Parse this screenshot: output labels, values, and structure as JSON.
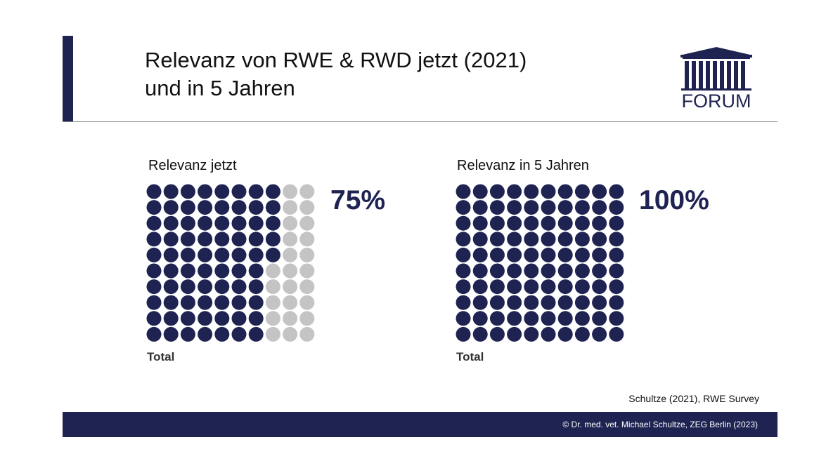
{
  "header": {
    "title_line1": "Relevanz von RWE & RWD jetzt (2021)",
    "title_line2": "und in 5 Jahren",
    "logo_text": "FORUM"
  },
  "colors": {
    "accent": "#1f2352",
    "filled_dot": "#1f2352",
    "empty_dot": "#c4c4c4",
    "rule": "#8a8a8a"
  },
  "chart_data": [
    {
      "type": "waffle",
      "title": "Relevanz jetzt",
      "value_label": "75%",
      "value_percent": 75,
      "total": 100,
      "filled": 75,
      "grid": [
        10,
        10
      ],
      "xlabel": "Total"
    },
    {
      "type": "waffle",
      "title": "Relevanz in 5 Jahren",
      "value_label": "100%",
      "value_percent": 100,
      "total": 100,
      "filled": 100,
      "grid": [
        10,
        10
      ],
      "xlabel": "Total"
    }
  ],
  "footer": {
    "source": "Schultze (2021), RWE Survey",
    "copyright": "© Dr. med. vet. Michael Schultze, ZEG Berlin (2023)"
  }
}
